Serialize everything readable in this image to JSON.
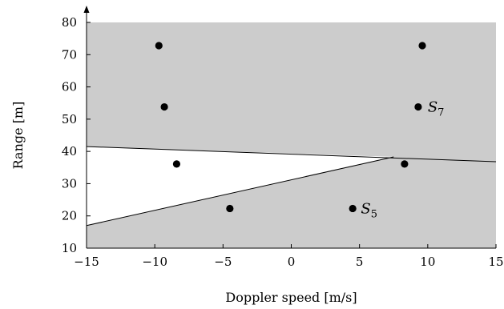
{
  "chart_data": {
    "type": "scatter",
    "xlabel": "Doppler speed [m/s]",
    "ylabel": "Range [m]",
    "xlim": [
      -15,
      15
    ],
    "ylim": [
      10,
      80
    ],
    "xticks": [
      -15,
      -10,
      -5,
      0,
      5,
      10,
      15
    ],
    "yticks": [
      10,
      20,
      30,
      40,
      50,
      60,
      70,
      80
    ],
    "xtick_labels": [
      "−15",
      "−10",
      "−5",
      "0",
      "5",
      "10",
      "15"
    ],
    "ytick_labels": [
      "10",
      "20",
      "30",
      "40",
      "50",
      "60",
      "70",
      "80"
    ],
    "grid": false,
    "background_color": "#cccccc",
    "unshaded_color": "#ffffff",
    "points": [
      {
        "x": -9.7,
        "y": 72.8
      },
      {
        "x": 9.6,
        "y": 72.8
      },
      {
        "x": -9.3,
        "y": 53.8
      },
      {
        "x": 9.3,
        "y": 53.8
      },
      {
        "x": -8.4,
        "y": 36.1
      },
      {
        "x": 8.3,
        "y": 36.1
      },
      {
        "x": -4.5,
        "y": 22.3
      },
      {
        "x": 4.5,
        "y": 22.3
      }
    ],
    "boundary_lines": [
      {
        "from": [
          -15,
          41.5
        ],
        "to": [
          15,
          36.8
        ]
      },
      {
        "from": [
          -15,
          17.0
        ],
        "to": [
          7.5,
          38.3
        ]
      }
    ],
    "unshaded_region": [
      [
        -15,
        41.5
      ],
      [
        7.5,
        38.3
      ],
      [
        -15,
        17.0
      ]
    ],
    "annotations": [
      {
        "label": "S",
        "sub": "7",
        "x": 10.0,
        "y": 53.8
      },
      {
        "label": "S",
        "sub": "5",
        "x": 5.1,
        "y": 22.3
      }
    ]
  }
}
